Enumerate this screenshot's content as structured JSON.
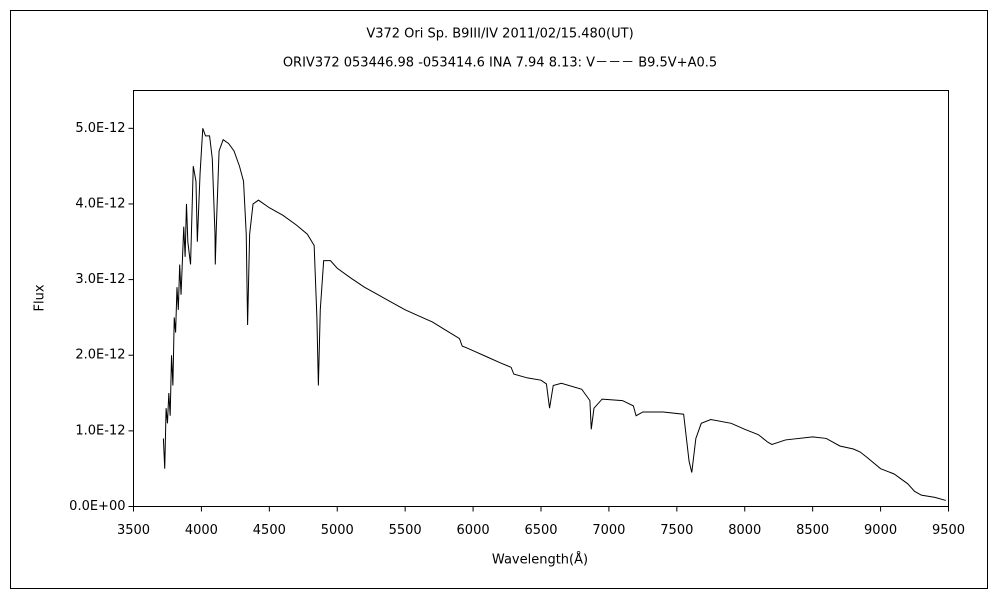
{
  "chart_data": {
    "type": "line",
    "title": "V372 Ori   Sp. B9III/IV   2011/02/15.480(UT)",
    "subtitle": "ORIV372 053446.98 -053414.6 INA 7.94 8.13: V－－－ B9.5V+A0.5",
    "x_label": "Wavelength(Å)",
    "y_label": "Flux",
    "xlim": [
      3500,
      9500
    ],
    "xticks": [
      3500,
      4000,
      4500,
      5000,
      5500,
      6000,
      6500,
      7000,
      7500,
      8000,
      8500,
      9000,
      9500
    ],
    "ylim": [
      0,
      5.5e-12
    ],
    "yticks": [
      {
        "value": 0,
        "label": "0.0E+00"
      },
      {
        "value": 1e-12,
        "label": "1.0E-12"
      },
      {
        "value": 2e-12,
        "label": "2.0E-12"
      },
      {
        "value": 3e-12,
        "label": "3.0E-12"
      },
      {
        "value": 4e-12,
        "label": "4.0E-12"
      },
      {
        "value": 5e-12,
        "label": "5.0E-12"
      }
    ],
    "color": "#000000",
    "x": [
      3720,
      3730,
      3740,
      3750,
      3760,
      3770,
      3780,
      3790,
      3800,
      3810,
      3820,
      3830,
      3840,
      3850,
      3870,
      3880,
      3890,
      3900,
      3920,
      3940,
      3960,
      3970,
      3990,
      4010,
      4030,
      4060,
      4080,
      4100,
      4102,
      4110,
      4130,
      4160,
      4200,
      4240,
      4280,
      4310,
      4330,
      4340,
      4355,
      4380,
      4420,
      4500,
      4600,
      4700,
      4780,
      4830,
      4850,
      4861,
      4875,
      4900,
      4950,
      5000,
      5100,
      5200,
      5300,
      5400,
      5500,
      5600,
      5700,
      5800,
      5900,
      5920,
      5950,
      6000,
      6100,
      6200,
      6280,
      6300,
      6400,
      6500,
      6540,
      6563,
      6590,
      6650,
      6800,
      6860,
      6870,
      6890,
      6950,
      7100,
      7180,
      7200,
      7250,
      7400,
      7550,
      7590,
      7610,
      7640,
      7680,
      7750,
      7900,
      8000,
      8100,
      8170,
      8200,
      8300,
      8500,
      8600,
      8700,
      8800,
      8850,
      8900,
      9000,
      9100,
      9200,
      9250,
      9300,
      9400,
      9480
    ],
    "values": [
      9e-13,
      5e-13,
      1.3e-12,
      1.1e-12,
      1.5e-12,
      1.2e-12,
      2e-12,
      1.6e-12,
      2.5e-12,
      2.3e-12,
      2.9e-12,
      2.6e-12,
      3.2e-12,
      2.8e-12,
      3.7e-12,
      3.3e-12,
      4e-12,
      3.5e-12,
      3.2e-12,
      4.5e-12,
      4.3e-12,
      3.5e-12,
      4.4e-12,
      5e-12,
      4.9e-12,
      4.9e-12,
      4.6e-12,
      3.6e-12,
      3.2e-12,
      3.7e-12,
      4.7e-12,
      4.85e-12,
      4.8e-12,
      4.7e-12,
      4.5e-12,
      4.3e-12,
      3.6e-12,
      2.4e-12,
      3.6e-12,
      4e-12,
      4.05e-12,
      3.95e-12,
      3.85e-12,
      3.72e-12,
      3.6e-12,
      3.45e-12,
      2.5e-12,
      1.6e-12,
      2.6e-12,
      3.25e-12,
      3.25e-12,
      3.15e-12,
      3.02e-12,
      2.9e-12,
      2.8e-12,
      2.7e-12,
      2.6e-12,
      2.52e-12,
      2.44e-12,
      2.33e-12,
      2.22e-12,
      2.12e-12,
      2.1e-12,
      2.06e-12,
      1.98e-12,
      1.9e-12,
      1.84e-12,
      1.75e-12,
      1.7e-12,
      1.67e-12,
      1.62e-12,
      1.3e-12,
      1.6e-12,
      1.63e-12,
      1.55e-12,
      1.4e-12,
      1.02e-12,
      1.3e-12,
      1.42e-12,
      1.4e-12,
      1.33e-12,
      1.2e-12,
      1.25e-12,
      1.25e-12,
      1.22e-12,
      6e-13,
      4.5e-13,
      9e-13,
      1.1e-12,
      1.15e-12,
      1.1e-12,
      1.02e-12,
      9.5e-13,
      8.5e-13,
      8.2e-13,
      8.8e-13,
      9.2e-13,
      9e-13,
      8e-13,
      7.6e-13,
      7.2e-13,
      6.5e-13,
      5e-13,
      4.3e-13,
      3e-13,
      2e-13,
      1.5e-13,
      1.2e-13,
      8e-14
    ]
  }
}
